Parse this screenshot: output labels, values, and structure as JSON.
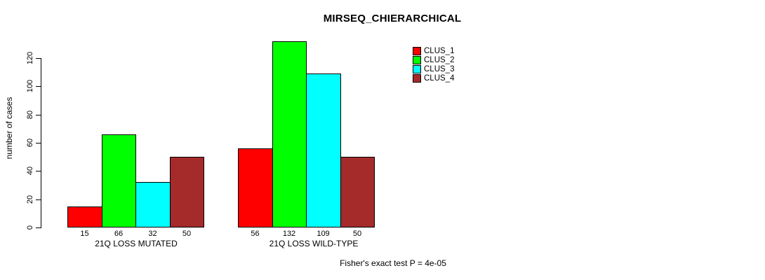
{
  "chart_data": {
    "type": "bar",
    "title": "MIRSEQ_CHIERARCHICAL",
    "ylabel": "number of cases",
    "xlabel": "",
    "categories": [
      "21Q LOSS MUTATED",
      "21Q LOSS WILD-TYPE"
    ],
    "series": [
      {
        "name": "CLUS_1",
        "color": "#ff0000",
        "values": [
          15,
          56
        ]
      },
      {
        "name": "CLUS_2",
        "color": "#00ff00",
        "values": [
          66,
          132
        ]
      },
      {
        "name": "CLUS_3",
        "color": "#00ffff",
        "values": [
          32,
          109
        ]
      },
      {
        "name": "CLUS_4",
        "color": "#a52a2a",
        "values": [
          50,
          50
        ]
      }
    ],
    "bar_value_labels": [
      [
        15,
        66,
        32,
        50
      ],
      [
        56,
        132,
        109,
        50
      ]
    ],
    "yticks": [
      0,
      20,
      40,
      60,
      80,
      100,
      120
    ],
    "ylim": [
      0,
      133
    ],
    "grid": false,
    "legend_position": "top-right",
    "annotation": "Fisher's exact test P = 4e-05",
    "background_color": "#ffffff",
    "text_color": "#000000"
  }
}
